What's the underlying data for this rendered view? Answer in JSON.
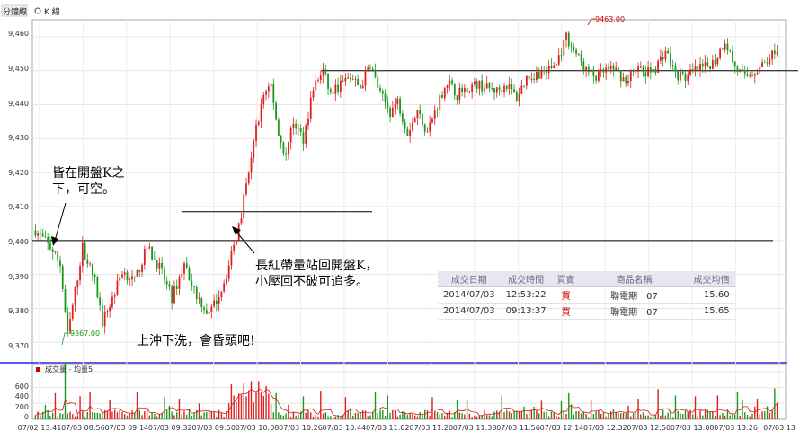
{
  "header": {
    "tab_label": "分鐘線",
    "kline_label": "K 線"
  },
  "annotations": {
    "left": "皆在開盤K之\n下，可空。",
    "middle": "長紅帶量站回開盤K，\n小壓回不破可追多。",
    "bottom": "上沖下洗，會昏頭吧!"
  },
  "price_markers": {
    "high_label": "9463.00",
    "low_label": "9367.00"
  },
  "volume_legend": "成交量 - 均量5",
  "trade_table": {
    "headers": [
      "成交日期",
      "成交時間",
      "買賣",
      "商品名稱",
      "成交均價"
    ],
    "rows": [
      [
        "2014/07/03",
        "12:53:22",
        "買",
        "聯電期　07",
        "15.60"
      ],
      [
        "2014/07/03",
        "09:13:37",
        "買",
        "聯電期　07",
        "15.65"
      ]
    ]
  },
  "chart_data": {
    "type": "candlestick",
    "y_ticks": [
      "9,460",
      "9,450",
      "9,440",
      "9,430",
      "9,420",
      "9,410",
      "9,400",
      "9,390",
      "9,380",
      "9,370"
    ],
    "ylim": [
      9364,
      9465
    ],
    "volume_ticks": [
      "600",
      "400",
      "200",
      "0"
    ],
    "volume_ylim": [
      0,
      700
    ],
    "x_ticks": [
      "07/02 13:41",
      "07/03 08:56",
      "07/03 09:14",
      "07/03 09:32",
      "07/03 09:50",
      "07/03 10:08",
      "07/03 10:26",
      "07/03 10:44",
      "07/03 11:02",
      "07/03 11:20",
      "07/03 11:38",
      "07/03 11:56",
      "07/03 12:14",
      "07/03 12:32",
      "07/03 12:50",
      "07/03 13:08",
      "07/03 13:26",
      "07/03 13"
    ],
    "reference_lines": [
      9400,
      9408.5,
      9450
    ],
    "grid": true,
    "anchors": [
      [
        0,
        9403
      ],
      [
        6,
        9398
      ],
      [
        10,
        9393
      ],
      [
        13,
        9372
      ],
      [
        16,
        9385
      ],
      [
        19,
        9398
      ],
      [
        24,
        9388
      ],
      [
        27,
        9376
      ],
      [
        31,
        9383
      ],
      [
        35,
        9391
      ],
      [
        40,
        9388
      ],
      [
        45,
        9398
      ],
      [
        50,
        9392
      ],
      [
        55,
        9383
      ],
      [
        60,
        9393
      ],
      [
        65,
        9384
      ],
      [
        70,
        9378
      ],
      [
        74,
        9384
      ],
      [
        77,
        9390
      ],
      [
        80,
        9398
      ],
      [
        83,
        9408
      ],
      [
        86,
        9420
      ],
      [
        89,
        9433
      ],
      [
        92,
        9443
      ],
      [
        95,
        9446
      ],
      [
        98,
        9431
      ],
      [
        101,
        9425
      ],
      [
        104,
        9435
      ],
      [
        108,
        9430
      ],
      [
        112,
        9445
      ],
      [
        116,
        9450
      ],
      [
        119,
        9443
      ],
      [
        123,
        9446
      ],
      [
        127,
        9448
      ],
      [
        131,
        9445
      ],
      [
        135,
        9452
      ],
      [
        139,
        9443
      ],
      [
        143,
        9438
      ],
      [
        146,
        9441
      ],
      [
        150,
        9432
      ],
      [
        154,
        9438
      ],
      [
        158,
        9432
      ],
      [
        162,
        9440
      ],
      [
        166,
        9447
      ],
      [
        170,
        9443
      ],
      [
        174,
        9445
      ],
      [
        178,
        9446
      ],
      [
        182,
        9445
      ],
      [
        186,
        9444
      ],
      [
        190,
        9446
      ],
      [
        194,
        9442
      ],
      [
        198,
        9448
      ],
      [
        202,
        9449
      ],
      [
        206,
        9450
      ],
      [
        210,
        9452
      ],
      [
        214,
        9460
      ],
      [
        218,
        9455
      ],
      [
        222,
        9450
      ],
      [
        226,
        9448
      ],
      [
        230,
        9450
      ],
      [
        234,
        9450
      ],
      [
        238,
        9447
      ],
      [
        242,
        9451
      ],
      [
        246,
        9449
      ],
      [
        250,
        9451
      ],
      [
        254,
        9456
      ],
      [
        258,
        9449
      ],
      [
        262,
        9448
      ],
      [
        266,
        9450
      ],
      [
        270,
        9451
      ],
      [
        274,
        9453
      ],
      [
        278,
        9459
      ],
      [
        282,
        9451
      ],
      [
        286,
        9448
      ],
      [
        290,
        9450
      ],
      [
        294,
        9452
      ],
      [
        298,
        9456
      ]
    ],
    "volume_spikes": [
      [
        8,
        330
      ],
      [
        12,
        720
      ],
      [
        18,
        290
      ],
      [
        22,
        340
      ],
      [
        30,
        250
      ],
      [
        41,
        350
      ],
      [
        52,
        280
      ],
      [
        58,
        260
      ],
      [
        66,
        200
      ],
      [
        79,
        440
      ],
      [
        84,
        460
      ],
      [
        87,
        480
      ],
      [
        90,
        480
      ],
      [
        93,
        420
      ],
      [
        97,
        330
      ],
      [
        108,
        290
      ],
      [
        115,
        360
      ],
      [
        125,
        280
      ],
      [
        137,
        350
      ],
      [
        142,
        300
      ],
      [
        160,
        280
      ],
      [
        174,
        240
      ],
      [
        188,
        300
      ],
      [
        215,
        330
      ],
      [
        224,
        250
      ],
      [
        243,
        260
      ],
      [
        251,
        380
      ],
      [
        258,
        300
      ],
      [
        266,
        290
      ],
      [
        275,
        300
      ],
      [
        283,
        350
      ],
      [
        291,
        260
      ],
      [
        298,
        390
      ]
    ]
  }
}
